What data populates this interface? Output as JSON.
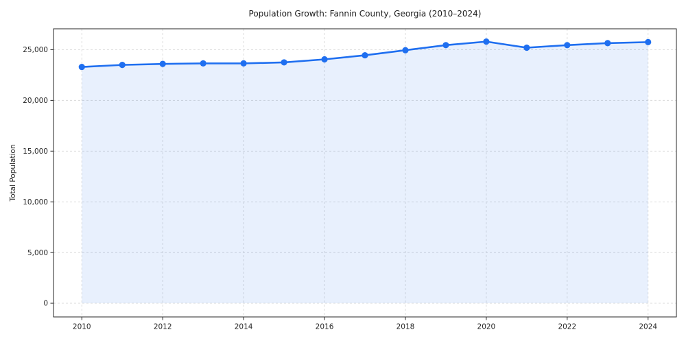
{
  "chart_data": {
    "type": "line",
    "title": "Population Growth: Fannin County, Georgia (2010–2024)",
    "xlabel": "",
    "ylabel": "Total Population",
    "x": [
      2010,
      2011,
      2012,
      2013,
      2014,
      2015,
      2016,
      2017,
      2018,
      2019,
      2020,
      2021,
      2022,
      2023,
      2024
    ],
    "series": [
      {
        "name": "Total Population",
        "values": [
          23300,
          23500,
          23600,
          23650,
          23650,
          23750,
          24050,
          24450,
          24950,
          25450,
          25800,
          25200,
          25450,
          25650,
          25750
        ]
      }
    ],
    "xticks": [
      2010,
      2012,
      2014,
      2016,
      2018,
      2020,
      2022,
      2024
    ],
    "xtick_labels": [
      "2010",
      "2012",
      "2014",
      "2016",
      "2018",
      "2020",
      "2022",
      "2024"
    ],
    "yticks": [
      0,
      5000,
      10000,
      15000,
      20000,
      25000
    ],
    "ytick_labels": [
      "0",
      "5,000",
      "10,000",
      "15,000",
      "20,000",
      "25,000"
    ],
    "xlim": [
      2009.3,
      2024.7
    ],
    "ylim": [
      -1350,
      27060
    ],
    "grid": true,
    "grid_style": "dashed",
    "legend": "none",
    "area_fill_to": 0,
    "marker": "circle",
    "colors": {
      "line": "#1f6ff0",
      "marker": "#1f6ff0",
      "fill": "rgba(33,112,240,0.10)",
      "grid": "#d9d9d9",
      "spine": "#262626",
      "text": "#262626",
      "title": "#1a1a1a",
      "background": "#ffffff"
    }
  }
}
